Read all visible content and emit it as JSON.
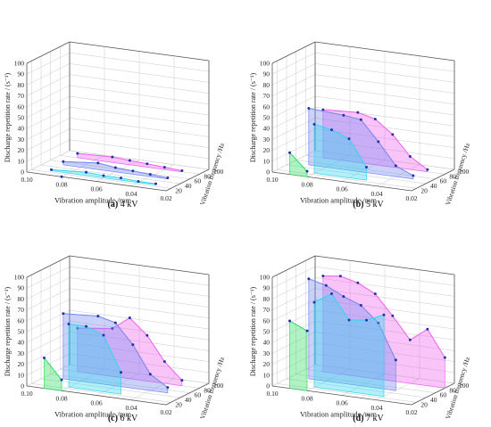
{
  "chart_data": [
    {
      "type": "3d-waterfall",
      "panel_label": "(a)",
      "panel_title": "4 kV",
      "xlabel": "Vibration amplitude /mm",
      "ylabel": "Discharge repetition rate / (s⁻¹)",
      "zlabel": "Vibration frequency /Hz",
      "x_ticks": [
        "0.10",
        "0.08",
        "0.06",
        "0.04",
        "0.02"
      ],
      "y_ticks": [
        "0",
        "10",
        "20",
        "30",
        "40",
        "50",
        "60",
        "70",
        "80",
        "90",
        "100"
      ],
      "z_ticks": [
        "20",
        "40",
        "60",
        "80",
        "100"
      ],
      "xlim": [
        0.1,
        0.02
      ],
      "ylim": [
        0,
        100
      ],
      "zlim": [
        10,
        100
      ],
      "series": [
        {
          "frequency": 10,
          "color": "#33dd66",
          "x": [
            0.08
          ],
          "y": [
            0
          ]
        },
        {
          "frequency": 25,
          "color": "#33d6ee",
          "x": [
            0.09,
            0.07,
            0.06,
            0.05,
            0.04,
            0.03
          ],
          "y": [
            1,
            3,
            2,
            2,
            1,
            1
          ]
        },
        {
          "frequency": 50,
          "color": "#7788ee",
          "x": [
            0.09,
            0.07,
            0.06,
            0.05,
            0.04,
            0.03
          ],
          "y": [
            3,
            6,
            4,
            3,
            2,
            1
          ]
        },
        {
          "frequency": 80,
          "color": "#ee66ee",
          "x": [
            0.09,
            0.07,
            0.06,
            0.05,
            0.04,
            0.03
          ],
          "y": [
            4,
            5,
            4,
            3,
            2,
            1
          ]
        }
      ]
    },
    {
      "type": "3d-waterfall",
      "panel_label": "(b)",
      "panel_title": "5 kV",
      "xlabel": "Vibration amplitude /mm",
      "ylabel": "Discharge repetition rate / (s⁻¹)",
      "zlabel": "Vibration frequency /Hz",
      "x_ticks": [
        "0.10",
        "0.08",
        "0.06",
        "0.04",
        "0.02"
      ],
      "y_ticks": [
        "0",
        "10",
        "20",
        "30",
        "40",
        "50",
        "60",
        "70",
        "80",
        "90",
        "100"
      ],
      "z_ticks": [
        "20",
        "40",
        "60",
        "80",
        "100"
      ],
      "xlim": [
        0.1,
        0.02
      ],
      "ylim": [
        0,
        100
      ],
      "zlim": [
        10,
        100
      ],
      "series": [
        {
          "frequency": 10,
          "color": "#33dd66",
          "x": [
            0.09,
            0.08
          ],
          "y": [
            20,
            5
          ]
        },
        {
          "frequency": 25,
          "color": "#33d6ee",
          "x": [
            0.08,
            0.07,
            0.06,
            0.05
          ],
          "y": [
            45,
            42,
            36,
            12
          ]
        },
        {
          "frequency": 50,
          "color": "#7788ee",
          "x": [
            0.09,
            0.07,
            0.06,
            0.05,
            0.04,
            0.03
          ],
          "y": [
            52,
            50,
            48,
            30,
            10,
            3
          ]
        },
        {
          "frequency": 80,
          "color": "#ee66ee",
          "x": [
            0.09,
            0.07,
            0.06,
            0.05,
            0.04,
            0.03
          ],
          "y": [
            44,
            46,
            42,
            30,
            12,
            2
          ]
        }
      ]
    },
    {
      "type": "3d-waterfall",
      "panel_label": "(c)",
      "panel_title": "6 kV",
      "xlabel": "Vibration amplitude /mm",
      "ylabel": "Discharge repetition rate / (s⁻¹)",
      "zlabel": "Vibration frequency /Hz",
      "x_ticks": [
        "0.10",
        "0.08",
        "0.06",
        "0.04",
        "0.02"
      ],
      "y_ticks": [
        "0",
        "10",
        "20",
        "30",
        "40",
        "50",
        "60",
        "70",
        "80",
        "90",
        "100"
      ],
      "z_ticks": [
        "20",
        "40",
        "60",
        "80",
        "100"
      ],
      "xlim": [
        0.1,
        0.02
      ],
      "ylim": [
        0,
        100
      ],
      "zlim": [
        10,
        100
      ],
      "series": [
        {
          "frequency": 10,
          "color": "#33dd66",
          "x": [
            0.09,
            0.08
          ],
          "y": [
            28,
            10
          ]
        },
        {
          "frequency": 25,
          "color": "#33d6ee",
          "x": [
            0.08,
            0.07,
            0.06,
            0.05
          ],
          "y": [
            58,
            58,
            52,
            20
          ]
        },
        {
          "frequency": 50,
          "color": "#7788ee",
          "x": [
            0.09,
            0.07,
            0.06,
            0.05,
            0.04,
            0.03
          ],
          "y": [
            60,
            62,
            58,
            40,
            15,
            5
          ]
        },
        {
          "frequency": 80,
          "color": "#ee66ee",
          "x": [
            0.09,
            0.07,
            0.06,
            0.05,
            0.04,
            0.03
          ],
          "y": [
            40,
            44,
            56,
            42,
            20,
            5
          ]
        }
      ]
    },
    {
      "type": "3d-waterfall",
      "panel_label": "(d)",
      "panel_title": "7 kV",
      "xlabel": "Vibration amplitude /mm",
      "ylabel": "Discharge repetition rate / (s⁻¹)",
      "zlabel": "Vibration frequency /Hz",
      "x_ticks": [
        "0.10",
        "0.08",
        "0.06",
        "0.04",
        "0.02"
      ],
      "y_ticks": [
        "0",
        "10",
        "20",
        "30",
        "40",
        "50",
        "60",
        "70",
        "80",
        "90",
        "100"
      ],
      "z_ticks": [
        "20",
        "40",
        "60",
        "80",
        "100"
      ],
      "xlim": [
        0.1,
        0.02
      ],
      "ylim": [
        0,
        100
      ],
      "zlim": [
        10,
        100
      ],
      "series": [
        {
          "frequency": 10,
          "color": "#33dd66",
          "x": [
            0.09,
            0.08
          ],
          "y": [
            62,
            55
          ]
        },
        {
          "frequency": 25,
          "color": "#33d6ee",
          "x": [
            0.08,
            0.07,
            0.06,
            0.05,
            0.04
          ],
          "y": [
            78,
            88,
            66,
            68,
            75
          ]
        },
        {
          "frequency": 50,
          "color": "#7788ee",
          "x": [
            0.09,
            0.08,
            0.07,
            0.06,
            0.05,
            0.04
          ],
          "y": [
            92,
            88,
            80,
            74,
            60,
            28
          ]
        },
        {
          "frequency": 80,
          "color": "#ee66ee",
          "x": [
            0.09,
            0.08,
            0.07,
            0.06,
            0.05,
            0.04,
            0.03,
            0.02
          ],
          "y": [
            88,
            90,
            86,
            78,
            60,
            40,
            52,
            28
          ]
        }
      ]
    }
  ]
}
